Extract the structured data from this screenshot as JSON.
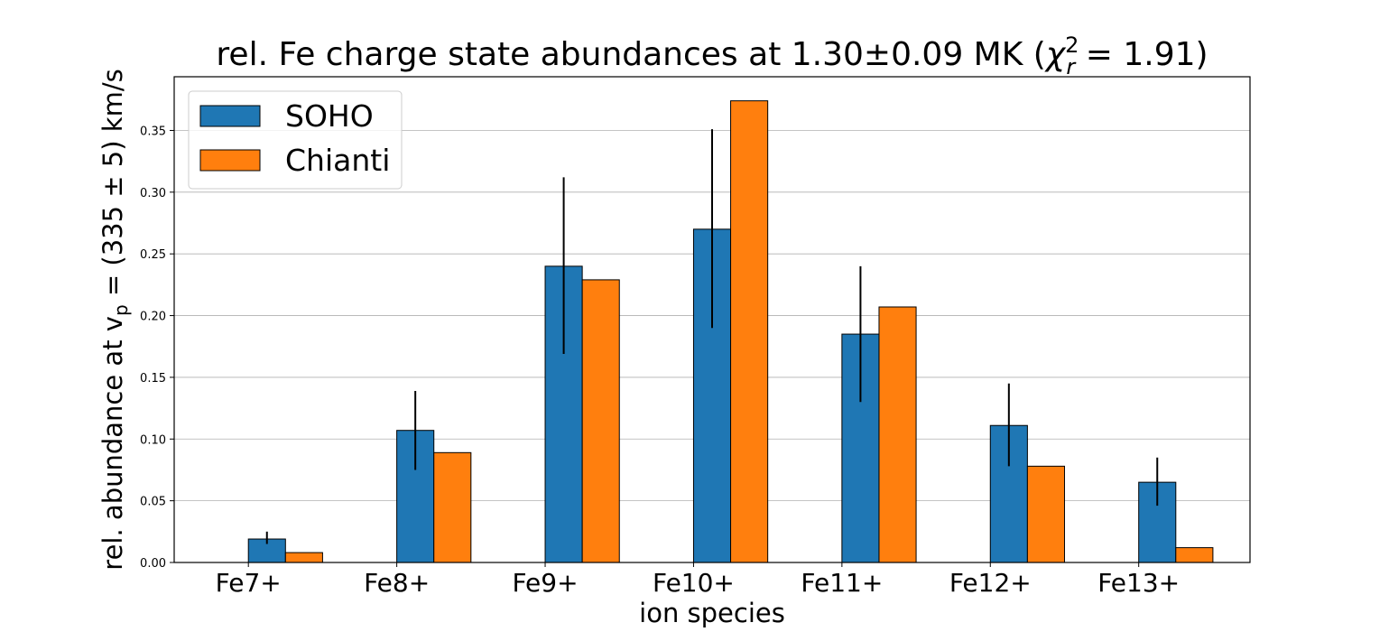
{
  "chart_data": {
    "type": "bar",
    "title_prefix": "rel. Fe charge state abundances at 1.30±0.09 MK (",
    "title_chi": "χ",
    "title_sup": "2",
    "title_sub": "r",
    "title_suffix": " = 1.91)",
    "xlabel": "ion species",
    "ylabel_prefix": "rel. abundance at v",
    "ylabel_sub": "p",
    "ylabel_suffix": " = (335 ± 5) km/s",
    "categories": [
      "Fe7+",
      "Fe8+",
      "Fe9+",
      "Fe10+",
      "Fe11+",
      "Fe12+",
      "Fe13+"
    ],
    "series": [
      {
        "name": "SOHO",
        "color": "#1f77b4",
        "values": [
          0.019,
          0.107,
          0.24,
          0.27,
          0.185,
          0.111,
          0.065
        ],
        "err_low": [
          0.015,
          0.075,
          0.169,
          0.19,
          0.13,
          0.078,
          0.046
        ],
        "err_high": [
          0.025,
          0.139,
          0.312,
          0.351,
          0.24,
          0.145,
          0.085
        ]
      },
      {
        "name": "Chianti",
        "color": "#ff7f0e",
        "values": [
          0.008,
          0.089,
          0.229,
          0.374,
          0.207,
          0.078,
          0.012
        ]
      }
    ],
    "yticks": [
      "0.00",
      "0.05",
      "0.10",
      "0.15",
      "0.20",
      "0.25",
      "0.30",
      "0.35"
    ],
    "ylim": [
      0,
      0.3935
    ],
    "grid": "y",
    "legend_position": "top-left"
  }
}
